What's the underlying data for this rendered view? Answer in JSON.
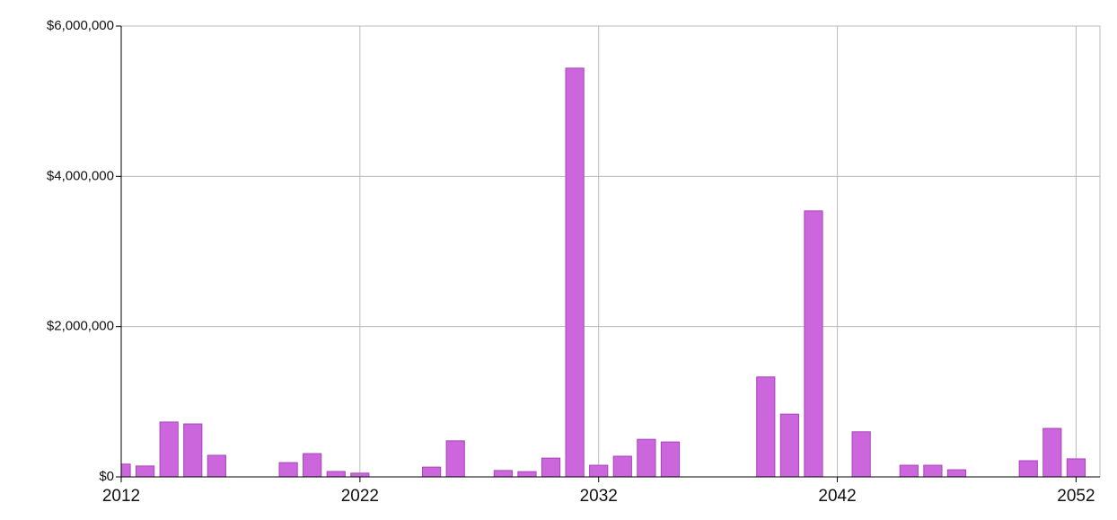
{
  "chart_data": {
    "type": "bar",
    "x": [
      2012,
      2013,
      2014,
      2015,
      2016,
      2017,
      2018,
      2019,
      2020,
      2021,
      2022,
      2023,
      2024,
      2025,
      2026,
      2027,
      2028,
      2029,
      2030,
      2031,
      2032,
      2033,
      2034,
      2035,
      2036,
      2037,
      2038,
      2039,
      2040,
      2041,
      2042,
      2043,
      2044,
      2045,
      2046,
      2047,
      2048,
      2049,
      2050,
      2051,
      2052
    ],
    "values": [
      170000,
      145000,
      730000,
      705000,
      287000,
      0,
      0,
      190000,
      310000,
      72000,
      50000,
      0,
      0,
      130000,
      480000,
      0,
      85000,
      70000,
      250000,
      5440000,
      155000,
      275000,
      500000,
      465000,
      0,
      0,
      0,
      1330000,
      835000,
      3540000,
      0,
      600000,
      0,
      155000,
      155000,
      95000,
      0,
      0,
      215000,
      645000,
      240000
    ],
    "color": "#cc66dd",
    "xlim": [
      2012,
      2053
    ],
    "xticks": [
      2012,
      2022,
      2032,
      2042,
      2052
    ],
    "ylim": [
      0,
      6000000
    ],
    "yticks": [
      {
        "value": 0,
        "label": "$0"
      },
      {
        "value": 2000000,
        "label": "$2,000,000"
      },
      {
        "value": 4000000,
        "label": "$4,000,000"
      },
      {
        "value": 6000000,
        "label": "$6,000,000"
      }
    ],
    "grid": true
  }
}
